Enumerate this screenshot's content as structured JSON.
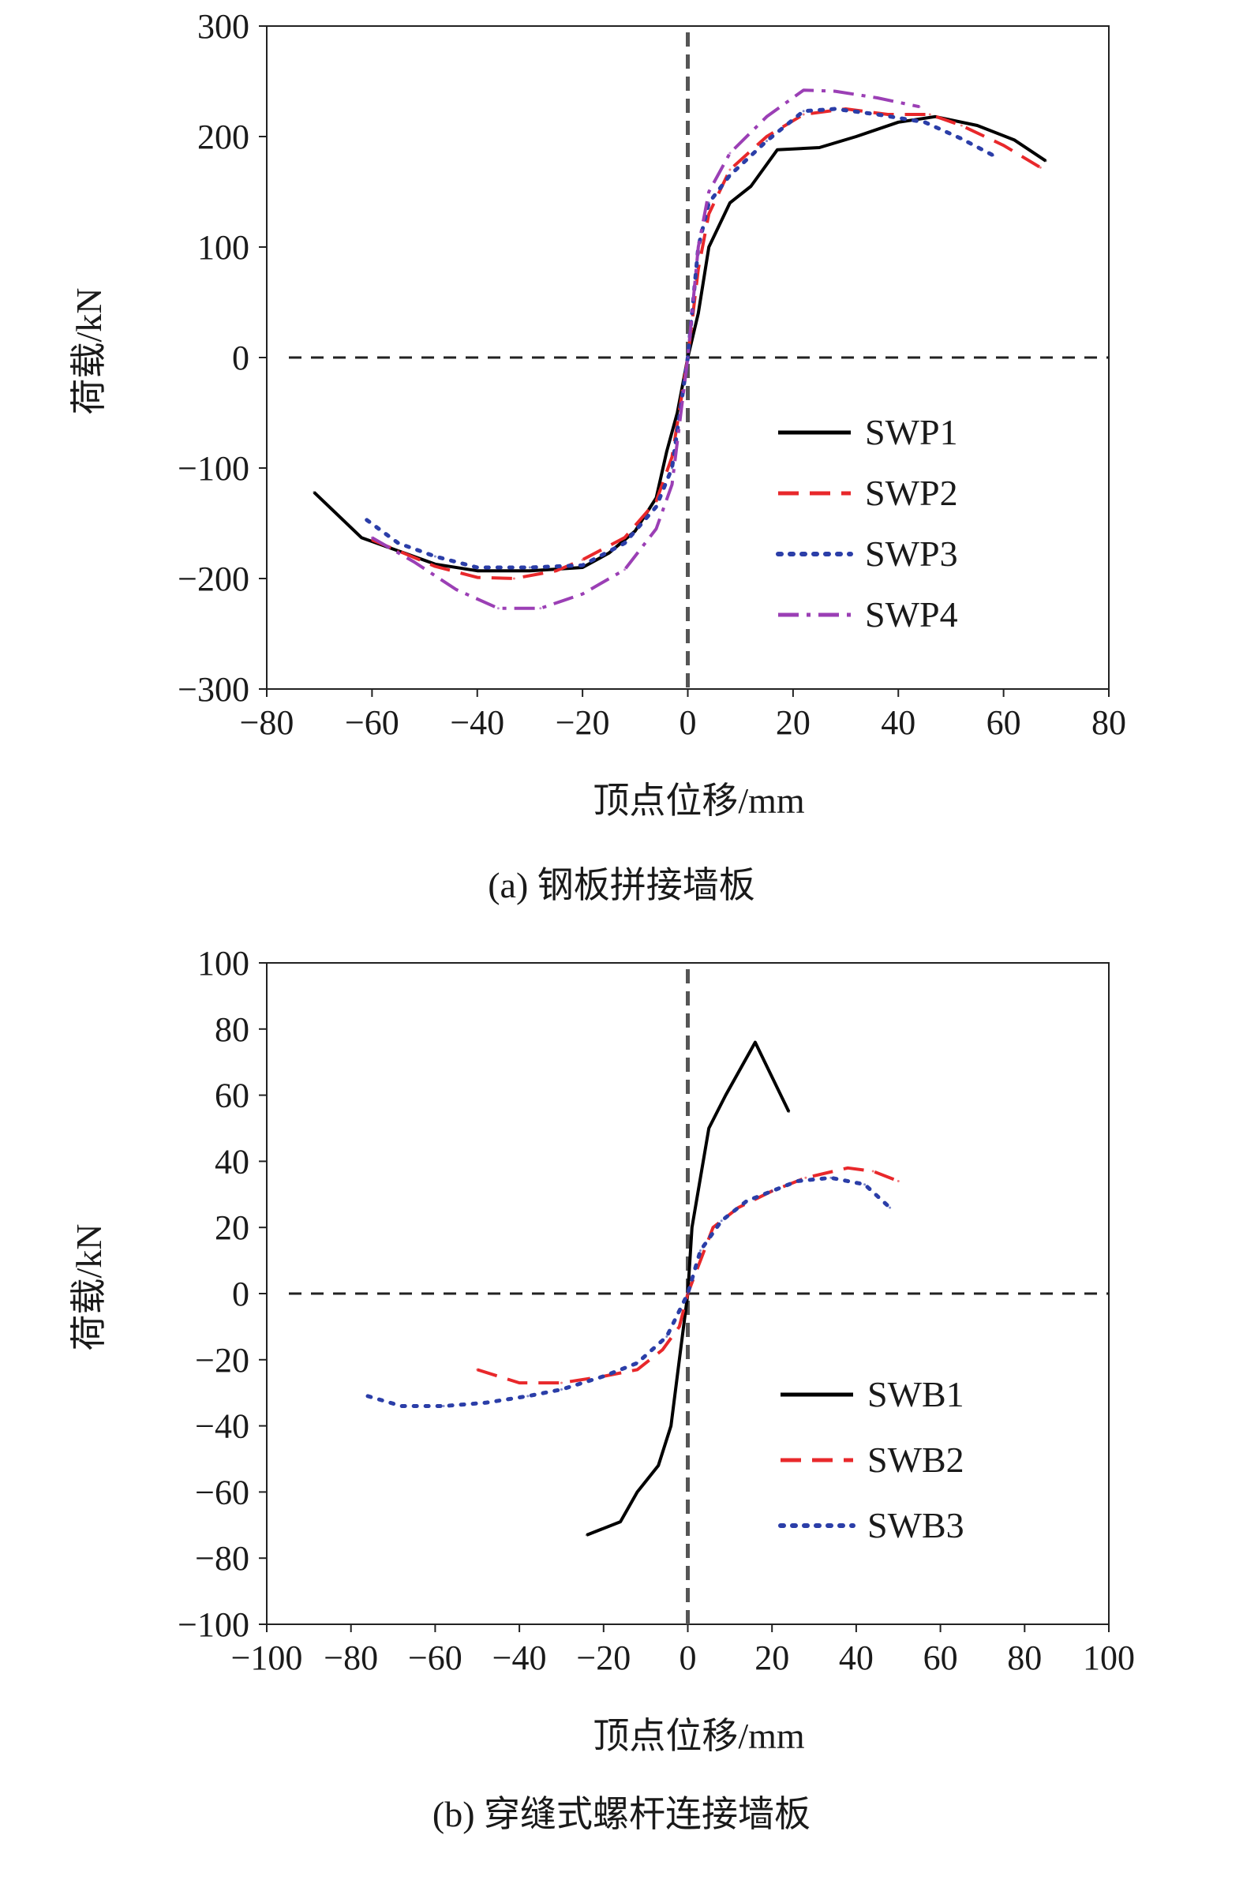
{
  "chart_data": [
    {
      "type": "line",
      "panel": "a",
      "caption": "(a) 钢板拼接墙板",
      "xlabel": "顶点位移/mm",
      "ylabel": "荷载/kN",
      "xlim": [
        -80,
        80
      ],
      "ylim": [
        -300,
        300
      ],
      "xticks": [
        -80,
        -60,
        -40,
        -20,
        0,
        20,
        40,
        60,
        80
      ],
      "yticks": [
        300,
        200,
        100,
        0,
        -100,
        -200,
        -300
      ],
      "grid": false,
      "legend_position": "right",
      "zero_lines": true,
      "series": [
        {
          "name": "SWP1",
          "color": "#000000",
          "dash": "solid",
          "points": [
            [
              -71,
              -122
            ],
            [
              -62,
              -163
            ],
            [
              -55,
              -175
            ],
            [
              -48,
              -187
            ],
            [
              -40,
              -193
            ],
            [
              -30,
              -193
            ],
            [
              -20,
              -190
            ],
            [
              -15,
              -177
            ],
            [
              -10,
              -157
            ],
            [
              -6,
              -127
            ],
            [
              -4,
              -85
            ],
            [
              -2,
              -50
            ],
            [
              0,
              0
            ],
            [
              2,
              40
            ],
            [
              4,
              100
            ],
            [
              8,
              140
            ],
            [
              12,
              155
            ],
            [
              17,
              188
            ],
            [
              25,
              190
            ],
            [
              32,
              200
            ],
            [
              40,
              213
            ],
            [
              47,
              218
            ],
            [
              55,
              210
            ],
            [
              62,
              197
            ],
            [
              68,
              178
            ]
          ]
        },
        {
          "name": "SWP2",
          "color": "#e8282b",
          "dash": "dash",
          "points": [
            [
              -60,
              -165
            ],
            [
              -55,
              -175
            ],
            [
              -48,
              -189
            ],
            [
              -40,
              -199
            ],
            [
              -33,
              -200
            ],
            [
              -25,
              -193
            ],
            [
              -20,
              -183
            ],
            [
              -12,
              -163
            ],
            [
              -6,
              -130
            ],
            [
              -3,
              -90
            ],
            [
              0,
              0
            ],
            [
              2,
              80
            ],
            [
              4,
              130
            ],
            [
              8,
              170
            ],
            [
              15,
              200
            ],
            [
              22,
              220
            ],
            [
              30,
              225
            ],
            [
              38,
              220
            ],
            [
              46,
              220
            ],
            [
              52,
              210
            ],
            [
              60,
              192
            ],
            [
              67,
              172
            ]
          ]
        },
        {
          "name": "SWP3",
          "color": "#2b3ea8",
          "dash": "dot",
          "points": [
            [
              -61,
              -147
            ],
            [
              -55,
              -168
            ],
            [
              -48,
              -180
            ],
            [
              -40,
              -190
            ],
            [
              -30,
              -190
            ],
            [
              -20,
              -188
            ],
            [
              -12,
              -168
            ],
            [
              -6,
              -135
            ],
            [
              -3,
              -100
            ],
            [
              0,
              0
            ],
            [
              2,
              100
            ],
            [
              4,
              140
            ],
            [
              8,
              165
            ],
            [
              15,
              196
            ],
            [
              22,
              223
            ],
            [
              28,
              225
            ],
            [
              36,
              220
            ],
            [
              45,
              213
            ],
            [
              52,
              198
            ],
            [
              58,
              183
            ]
          ]
        },
        {
          "name": "SWP4",
          "color": "#9b3fb5",
          "dash": "dashdot",
          "points": [
            [
              -60,
              -163
            ],
            [
              -52,
              -185
            ],
            [
              -44,
              -210
            ],
            [
              -36,
              -227
            ],
            [
              -28,
              -227
            ],
            [
              -20,
              -214
            ],
            [
              -12,
              -192
            ],
            [
              -6,
              -155
            ],
            [
              -3,
              -115
            ],
            [
              0,
              0
            ],
            [
              2,
              100
            ],
            [
              4,
              150
            ],
            [
              8,
              185
            ],
            [
              15,
              218
            ],
            [
              22,
              242
            ],
            [
              28,
              241
            ],
            [
              36,
              235
            ],
            [
              44,
              227
            ]
          ]
        }
      ]
    },
    {
      "type": "line",
      "panel": "b",
      "caption": "(b) 穿缝式螺杆连接墙板",
      "xlabel": "顶点位移/mm",
      "ylabel": "荷载/kN",
      "xlim": [
        -100,
        100
      ],
      "ylim": [
        -100,
        100
      ],
      "xticks": [
        -100,
        -80,
        -60,
        -40,
        -20,
        0,
        20,
        40,
        60,
        80,
        100
      ],
      "yticks": [
        100,
        80,
        60,
        40,
        20,
        0,
        -20,
        -40,
        -60,
        -80,
        -100
      ],
      "grid": false,
      "legend_position": "right",
      "zero_lines": true,
      "series": [
        {
          "name": "SWB1",
          "color": "#000000",
          "dash": "solid",
          "points": [
            [
              -24,
              -73
            ],
            [
              -16,
              -69
            ],
            [
              -12,
              -60
            ],
            [
              -7,
              -52
            ],
            [
              -4,
              -40
            ],
            [
              -2,
              -20
            ],
            [
              0,
              0
            ],
            [
              1,
              20
            ],
            [
              3,
              35
            ],
            [
              5,
              50
            ],
            [
              9,
              60
            ],
            [
              16,
              76
            ],
            [
              24,
              55
            ]
          ]
        },
        {
          "name": "SWB2",
          "color": "#e8282b",
          "dash": "dash",
          "points": [
            [
              -50,
              -23
            ],
            [
              -40,
              -27
            ],
            [
              -30,
              -27
            ],
            [
              -20,
              -25
            ],
            [
              -12,
              -23
            ],
            [
              -6,
              -17
            ],
            [
              -2,
              -10
            ],
            [
              0,
              0
            ],
            [
              3,
              10
            ],
            [
              6,
              20
            ],
            [
              12,
              26
            ],
            [
              20,
              31
            ],
            [
              28,
              35
            ],
            [
              38,
              38
            ],
            [
              44,
              37
            ],
            [
              50,
              34
            ]
          ]
        },
        {
          "name": "SWB3",
          "color": "#2b3ea8",
          "dash": "dot",
          "points": [
            [
              -76,
              -31
            ],
            [
              -68,
              -34
            ],
            [
              -58,
              -34
            ],
            [
              -48,
              -33
            ],
            [
              -38,
              -31
            ],
            [
              -30,
              -29
            ],
            [
              -20,
              -25
            ],
            [
              -12,
              -21
            ],
            [
              -5,
              -13
            ],
            [
              0,
              0
            ],
            [
              3,
              13
            ],
            [
              8,
              22
            ],
            [
              14,
              28
            ],
            [
              20,
              31
            ],
            [
              26,
              34
            ],
            [
              34,
              35
            ],
            [
              42,
              33
            ],
            [
              48,
              26
            ]
          ]
        }
      ]
    }
  ]
}
